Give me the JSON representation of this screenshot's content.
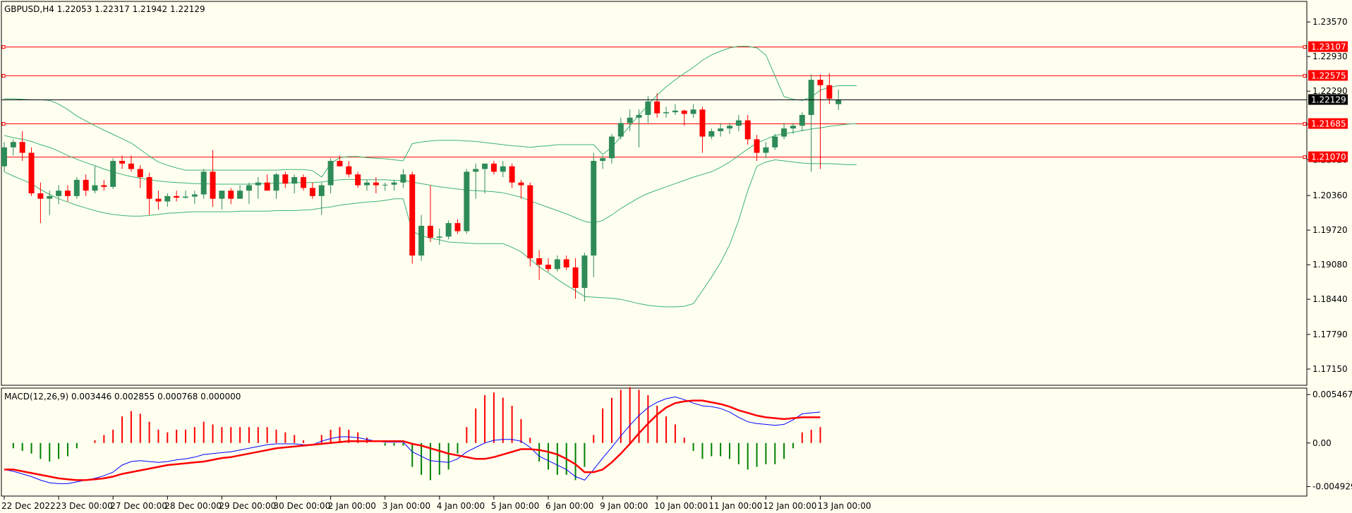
{
  "header": {
    "symbol_line": "GBPUSD,H4  1.22053 1.22317 1.21942 1.22129",
    "macd_line": "MACD(12,26,9) 0.003446 0.002855 0.000768 0.000000"
  },
  "colors": {
    "background": "#fffff0",
    "bull": "#2e8b57",
    "bear": "#ff0000",
    "bollinger": "#3cb371",
    "hline": "#ff0000",
    "price_line": "#000000",
    "macd_main": "#0000ff",
    "macd_signal": "#ff0000",
    "osma_pos": "#ff0000",
    "osma_neg": "#008000"
  },
  "price_axis": {
    "ticks": [
      "1.23570",
      "1.22930",
      "1.22290",
      "1.21680",
      "1.21020",
      "1.20360",
      "1.19720",
      "1.19080",
      "1.18440",
      "1.17790",
      "1.17150"
    ],
    "tick_values": [
      1.2357,
      1.2293,
      1.2229,
      1.2168,
      1.2102,
      1.2036,
      1.1972,
      1.1908,
      1.1844,
      1.1779,
      1.1715
    ]
  },
  "macd_axis": {
    "ticks": [
      "0.005467",
      "0.00",
      "-0.004929"
    ],
    "tick_values": [
      0.005467,
      0,
      -0.004929
    ]
  },
  "time_axis": {
    "labels": [
      "22 Dec 2022",
      "23 Dec 00:00",
      "27 Dec 00:00",
      "28 Dec 00:00",
      "29 Dec 00:00",
      "30 Dec 00:00",
      "2 Jan 00:00",
      "3 Jan 00:00",
      "4 Jan 00:00",
      "5 Jan 00:00",
      "6 Jan 00:00",
      "9 Jan 00:00",
      "10 Jan 00:00",
      "11 Jan 00:00",
      "12 Jan 00:00",
      "13 Jan 00:00"
    ],
    "label_bars": [
      0,
      6,
      12,
      18,
      24,
      30,
      36,
      42,
      48,
      54,
      60,
      66,
      72,
      78,
      84,
      90
    ]
  },
  "horizontal_levels": [
    {
      "label": "1.23107",
      "value": 1.23107
    },
    {
      "label": "1.22575",
      "value": 1.22575
    },
    {
      "label": "1.21685",
      "value": 1.21685
    },
    {
      "label": "1.21070",
      "value": 1.2107
    }
  ],
  "current_price": {
    "label": "1.22129",
    "value": 1.22129
  },
  "chart_data": {
    "type": "candlestick",
    "symbol": "GBPUSD",
    "timeframe": "H4",
    "price_range": [
      1.1685,
      1.2395
    ],
    "macd_range": [
      -0.006,
      0.0062
    ],
    "candles": [
      {
        "o": 1.209,
        "h": 1.2135,
        "l": 1.208,
        "c": 1.2125
      },
      {
        "o": 1.2125,
        "h": 1.214,
        "l": 1.211,
        "c": 1.2135
      },
      {
        "o": 1.2135,
        "h": 1.2155,
        "l": 1.21,
        "c": 1.2115
      },
      {
        "o": 1.2115,
        "h": 1.2125,
        "l": 1.2035,
        "c": 1.204
      },
      {
        "o": 1.204,
        "h": 1.206,
        "l": 1.1985,
        "c": 1.203
      },
      {
        "o": 1.203,
        "h": 1.2045,
        "l": 1.2,
        "c": 1.2035
      },
      {
        "o": 1.2035,
        "h": 1.2055,
        "l": 1.202,
        "c": 1.2045
      },
      {
        "o": 1.2045,
        "h": 1.2055,
        "l": 1.2025,
        "c": 1.2035
      },
      {
        "o": 1.2035,
        "h": 1.207,
        "l": 1.203,
        "c": 1.2065
      },
      {
        "o": 1.2065,
        "h": 1.2075,
        "l": 1.2035,
        "c": 1.2045
      },
      {
        "o": 1.2045,
        "h": 1.209,
        "l": 1.204,
        "c": 1.2055
      },
      {
        "o": 1.2055,
        "h": 1.2065,
        "l": 1.2045,
        "c": 1.2052
      },
      {
        "o": 1.2052,
        "h": 1.2105,
        "l": 1.2048,
        "c": 1.21
      },
      {
        "o": 1.21,
        "h": 1.211,
        "l": 1.2085,
        "c": 1.2095
      },
      {
        "o": 1.2095,
        "h": 1.211,
        "l": 1.208,
        "c": 1.2085
      },
      {
        "o": 1.2085,
        "h": 1.2092,
        "l": 1.205,
        "c": 1.207
      },
      {
        "o": 1.207,
        "h": 1.2078,
        "l": 1.2,
        "c": 1.203
      },
      {
        "o": 1.203,
        "h": 1.2045,
        "l": 1.201,
        "c": 1.2025
      },
      {
        "o": 1.2025,
        "h": 1.204,
        "l": 1.2015,
        "c": 1.2035
      },
      {
        "o": 1.2035,
        "h": 1.2045,
        "l": 1.2025,
        "c": 1.2032
      },
      {
        "o": 1.2032,
        "h": 1.2045,
        "l": 1.203,
        "c": 1.2034
      },
      {
        "o": 1.2034,
        "h": 1.2045,
        "l": 1.202,
        "c": 1.2038
      },
      {
        "o": 1.2038,
        "h": 1.2085,
        "l": 1.203,
        "c": 1.208
      },
      {
        "o": 1.208,
        "h": 1.212,
        "l": 1.2015,
        "c": 1.203
      },
      {
        "o": 1.203,
        "h": 1.2045,
        "l": 1.201,
        "c": 1.2045
      },
      {
        "o": 1.2045,
        "h": 1.205,
        "l": 1.202,
        "c": 1.203
      },
      {
        "o": 1.203,
        "h": 1.2055,
        "l": 1.203,
        "c": 1.2045
      },
      {
        "o": 1.2045,
        "h": 1.206,
        "l": 1.202,
        "c": 1.2055
      },
      {
        "o": 1.2055,
        "h": 1.207,
        "l": 1.203,
        "c": 1.206
      },
      {
        "o": 1.206,
        "h": 1.2075,
        "l": 1.2045,
        "c": 1.2045
      },
      {
        "o": 1.2045,
        "h": 1.2078,
        "l": 1.203,
        "c": 1.2075
      },
      {
        "o": 1.2075,
        "h": 1.208,
        "l": 1.205,
        "c": 1.2058
      },
      {
        "o": 1.2058,
        "h": 1.2075,
        "l": 1.204,
        "c": 1.207
      },
      {
        "o": 1.207,
        "h": 1.2075,
        "l": 1.2045,
        "c": 1.205
      },
      {
        "o": 1.205,
        "h": 1.206,
        "l": 1.203,
        "c": 1.2035
      },
      {
        "o": 1.2035,
        "h": 1.206,
        "l": 1.2,
        "c": 1.2055
      },
      {
        "o": 1.2055,
        "h": 1.2105,
        "l": 1.204,
        "c": 1.21
      },
      {
        "o": 1.21,
        "h": 1.211,
        "l": 1.209,
        "c": 1.209
      },
      {
        "o": 1.209,
        "h": 1.21,
        "l": 1.207,
        "c": 1.2075
      },
      {
        "o": 1.2075,
        "h": 1.208,
        "l": 1.205,
        "c": 1.2055
      },
      {
        "o": 1.2055,
        "h": 1.2065,
        "l": 1.2045,
        "c": 1.206
      },
      {
        "o": 1.206,
        "h": 1.207,
        "l": 1.204,
        "c": 1.2055
      },
      {
        "o": 1.2055,
        "h": 1.206,
        "l": 1.2045,
        "c": 1.2056
      },
      {
        "o": 1.2056,
        "h": 1.2065,
        "l": 1.2045,
        "c": 1.206
      },
      {
        "o": 1.206,
        "h": 1.2085,
        "l": 1.205,
        "c": 1.2075
      },
      {
        "o": 1.2075,
        "h": 1.208,
        "l": 1.191,
        "c": 1.1925
      },
      {
        "o": 1.1925,
        "h": 1.2,
        "l": 1.1915,
        "c": 1.198
      },
      {
        "o": 1.198,
        "h": 1.2055,
        "l": 1.195,
        "c": 1.1958
      },
      {
        "o": 1.1958,
        "h": 1.1975,
        "l": 1.1945,
        "c": 1.196
      },
      {
        "o": 1.196,
        "h": 1.199,
        "l": 1.1955,
        "c": 1.1985
      },
      {
        "o": 1.1985,
        "h": 1.1992,
        "l": 1.1965,
        "c": 1.197
      },
      {
        "o": 1.197,
        "h": 1.2085,
        "l": 1.1965,
        "c": 1.208
      },
      {
        "o": 1.208,
        "h": 1.2095,
        "l": 1.203,
        "c": 1.2085
      },
      {
        "o": 1.2085,
        "h": 1.2095,
        "l": 1.204,
        "c": 1.2095
      },
      {
        "o": 1.2095,
        "h": 1.21,
        "l": 1.2075,
        "c": 1.208
      },
      {
        "o": 1.208,
        "h": 1.21,
        "l": 1.207,
        "c": 1.209
      },
      {
        "o": 1.209,
        "h": 1.2095,
        "l": 1.205,
        "c": 1.206
      },
      {
        "o": 1.206,
        "h": 1.2065,
        "l": 1.203,
        "c": 1.2055
      },
      {
        "o": 1.2055,
        "h": 1.206,
        "l": 1.1905,
        "c": 1.192
      },
      {
        "o": 1.192,
        "h": 1.1935,
        "l": 1.188,
        "c": 1.1908
      },
      {
        "o": 1.1908,
        "h": 1.192,
        "l": 1.1895,
        "c": 1.19
      },
      {
        "o": 1.19,
        "h": 1.1925,
        "l": 1.1895,
        "c": 1.1918
      },
      {
        "o": 1.1918,
        "h": 1.1925,
        "l": 1.1898,
        "c": 1.1903
      },
      {
        "o": 1.1903,
        "h": 1.192,
        "l": 1.1845,
        "c": 1.1865
      },
      {
        "o": 1.1865,
        "h": 1.193,
        "l": 1.184,
        "c": 1.1925
      },
      {
        "o": 1.1925,
        "h": 1.2115,
        "l": 1.1885,
        "c": 1.21
      },
      {
        "o": 1.21,
        "h": 1.211,
        "l": 1.2085,
        "c": 1.2105
      },
      {
        "o": 1.2105,
        "h": 1.215,
        "l": 1.2095,
        "c": 1.2145
      },
      {
        "o": 1.2145,
        "h": 1.218,
        "l": 1.214,
        "c": 1.217
      },
      {
        "o": 1.217,
        "h": 1.2195,
        "l": 1.2155,
        "c": 1.218
      },
      {
        "o": 1.218,
        "h": 1.2195,
        "l": 1.2125,
        "c": 1.2185
      },
      {
        "o": 1.2185,
        "h": 1.222,
        "l": 1.217,
        "c": 1.221
      },
      {
        "o": 1.221,
        "h": 1.2225,
        "l": 1.218,
        "c": 1.2188
      },
      {
        "o": 1.2188,
        "h": 1.22,
        "l": 1.218,
        "c": 1.219
      },
      {
        "o": 1.219,
        "h": 1.2205,
        "l": 1.2185,
        "c": 1.2193
      },
      {
        "o": 1.2193,
        "h": 1.2195,
        "l": 1.2165,
        "c": 1.2187
      },
      {
        "o": 1.2187,
        "h": 1.2205,
        "l": 1.218,
        "c": 1.2195
      },
      {
        "o": 1.2195,
        "h": 1.22,
        "l": 1.2115,
        "c": 1.2145
      },
      {
        "o": 1.2145,
        "h": 1.216,
        "l": 1.214,
        "c": 1.2155
      },
      {
        "o": 1.2155,
        "h": 1.217,
        "l": 1.2145,
        "c": 1.216
      },
      {
        "o": 1.216,
        "h": 1.217,
        "l": 1.215,
        "c": 1.2165
      },
      {
        "o": 1.2165,
        "h": 1.2185,
        "l": 1.2155,
        "c": 1.2175
      },
      {
        "o": 1.2175,
        "h": 1.2185,
        "l": 1.213,
        "c": 1.214
      },
      {
        "o": 1.214,
        "h": 1.2148,
        "l": 1.21,
        "c": 1.2115
      },
      {
        "o": 1.2115,
        "h": 1.2135,
        "l": 1.2105,
        "c": 1.2125
      },
      {
        "o": 1.2125,
        "h": 1.215,
        "l": 1.212,
        "c": 1.2145
      },
      {
        "o": 1.2145,
        "h": 1.217,
        "l": 1.214,
        "c": 1.216
      },
      {
        "o": 1.216,
        "h": 1.217,
        "l": 1.215,
        "c": 1.2165
      },
      {
        "o": 1.2165,
        "h": 1.219,
        "l": 1.2155,
        "c": 1.2185
      },
      {
        "o": 1.2185,
        "h": 1.226,
        "l": 1.208,
        "c": 1.225
      },
      {
        "o": 1.225,
        "h": 1.226,
        "l": 1.2085,
        "c": 1.224
      },
      {
        "o": 1.224,
        "h": 1.2262,
        "l": 1.2205,
        "c": 1.2215
      },
      {
        "o": 1.2205,
        "h": 1.2232,
        "l": 1.2194,
        "c": 1.2213
      }
    ],
    "bollinger_upper": [
      1.2215,
      1.2215,
      1.2214,
      1.2213,
      1.2213,
      1.2212,
      1.2205,
      1.2195,
      1.2183,
      1.2174,
      1.2165,
      1.2157,
      1.2149,
      1.2141,
      1.2133,
      1.2121,
      1.2109,
      1.2098,
      1.2092,
      1.2087,
      1.2083,
      1.2083,
      1.2083,
      1.2083,
      1.2083,
      1.2083,
      1.2083,
      1.2083,
      1.2083,
      1.2083,
      1.2083,
      1.2084,
      1.2084,
      1.2084,
      1.2082,
      1.207,
      1.2095,
      1.2106,
      1.2108,
      1.2108,
      1.2106,
      1.2105,
      1.2104,
      1.2102,
      1.21,
      1.2132,
      1.2135,
      1.2137,
      1.2138,
      1.2138,
      1.2138,
      1.2137,
      1.2136,
      1.2134,
      1.2132,
      1.213,
      1.2128,
      1.2127,
      1.2125,
      1.2127,
      1.2128,
      1.213,
      1.213,
      1.213,
      1.213,
      1.213,
      1.2112,
      1.2125,
      1.2145,
      1.2165,
      1.2185,
      1.2203,
      1.2222,
      1.2237,
      1.225,
      1.2262,
      1.2273,
      1.2286,
      1.2296,
      1.2303,
      1.2309,
      1.2312,
      1.2312,
      1.2309,
      1.2296,
      1.2257,
      1.2219,
      1.2214,
      1.2212,
      1.2218,
      1.2231,
      1.2236,
      1.2239,
      1.2239,
      1.2239
    ],
    "bollinger_middle": [
      1.2147,
      1.2143,
      1.214,
      1.2136,
      1.213,
      1.2125,
      1.2118,
      1.211,
      1.2103,
      1.2097,
      1.2091,
      1.2085,
      1.208,
      1.2075,
      1.2071,
      1.2068,
      1.2065,
      1.2063,
      1.2061,
      1.206,
      1.2059,
      1.2058,
      1.2058,
      1.2057,
      1.2057,
      1.2057,
      1.2057,
      1.2057,
      1.2058,
      1.2058,
      1.2059,
      1.2059,
      1.206,
      1.206,
      1.206,
      1.2061,
      1.2063,
      1.2065,
      1.2066,
      1.2065,
      1.2065,
      1.2065,
      1.2065,
      1.2064,
      1.2064,
      1.2061,
      1.2058,
      1.2055,
      1.2052,
      1.205,
      1.2048,
      1.2046,
      1.2045,
      1.2044,
      1.2043,
      1.2041,
      1.2037,
      1.2033,
      1.2026,
      1.202,
      1.2014,
      1.2008,
      1.2002,
      1.1995,
      1.1988,
      1.1985,
      1.199,
      1.2,
      1.2012,
      1.2022,
      1.2032,
      1.204,
      1.2046,
      1.2052,
      1.2058,
      1.2064,
      1.207,
      1.2075,
      1.208,
      1.2088,
      1.2098,
      1.211,
      1.2122,
      1.2133,
      1.214,
      1.2147,
      1.215,
      1.2153,
      1.2156,
      1.2159,
      1.2161,
      1.2164,
      1.2166,
      1.2168,
      1.2169
    ],
    "bollinger_lower": [
      1.208,
      1.2072,
      1.2065,
      1.2058,
      1.2047,
      1.2038,
      1.203,
      1.2024,
      1.2018,
      1.2013,
      1.2008,
      1.2004,
      1.2001,
      1.1999,
      1.1998,
      1.1998,
      1.1999,
      1.2001,
      1.2003,
      1.2004,
      1.2005,
      1.2006,
      1.2006,
      1.2006,
      1.2006,
      1.2006,
      1.2007,
      1.2007,
      1.2007,
      1.2007,
      1.2008,
      1.2008,
      1.2008,
      1.2009,
      1.201,
      1.2013,
      1.2015,
      1.2018,
      1.202,
      1.2022,
      1.2024,
      1.2025,
      1.2027,
      1.203,
      1.203,
      1.197,
      1.1962,
      1.1957,
      1.1954,
      1.195,
      1.1949,
      1.1948,
      1.1947,
      1.1947,
      1.1947,
      1.1947,
      1.194,
      1.1932,
      1.1918,
      1.1904,
      1.1893,
      1.1881,
      1.187,
      1.186,
      1.1849,
      1.1848,
      1.1847,
      1.1846,
      1.1844,
      1.184,
      1.1836,
      1.1833,
      1.1831,
      1.183,
      1.183,
      1.1831,
      1.1836,
      1.186,
      1.1885,
      1.1912,
      1.1945,
      1.199,
      1.2045,
      1.209,
      1.2098,
      1.2102,
      1.21,
      1.2098,
      1.2096,
      1.2095,
      1.2095,
      1.2095,
      1.2094,
      1.2093,
      1.2093
    ],
    "macd_main": [
      -0.003,
      -0.0032,
      -0.0035,
      -0.0038,
      -0.0042,
      -0.0045,
      -0.0046,
      -0.0046,
      -0.0044,
      -0.0042,
      -0.004,
      -0.0037,
      -0.0033,
      -0.0025,
      -0.0021,
      -0.002,
      -0.0021,
      -0.0022,
      -0.0021,
      -0.0019,
      -0.0018,
      -0.0016,
      -0.0013,
      -0.0012,
      -0.0011,
      -0.001,
      -0.0008,
      -0.0006,
      -0.0004,
      -0.0002,
      -0.0001,
      -0.0001,
      -0.0001,
      -0.0002,
      -0.0002,
      0.0002,
      0.0005,
      0.0007,
      0.0007,
      0.0006,
      0.0004,
      0.0002,
      0.0001,
      0.0001,
      0.0001,
      -0.001,
      -0.0015,
      -0.002,
      -0.0021,
      -0.0022,
      -0.0018,
      -0.001,
      -0.0005,
      0.0,
      0.0003,
      0.0004,
      0.0004,
      0.0002,
      -0.0005,
      -0.0015,
      -0.002,
      -0.0025,
      -0.003,
      -0.0038,
      -0.0042,
      -0.003,
      -0.0017,
      -0.0005,
      0.0008,
      0.002,
      0.0031,
      0.004,
      0.0046,
      0.005,
      0.0052,
      0.0049,
      0.0045,
      0.0042,
      0.0041,
      0.0039,
      0.0035,
      0.0029,
      0.0024,
      0.0022,
      0.0021,
      0.002,
      0.0021,
      0.0026,
      0.0033,
      0.0034,
      0.0035
    ],
    "macd_signal": [
      -0.003,
      -0.003,
      -0.0032,
      -0.0034,
      -0.0036,
      -0.0038,
      -0.004,
      -0.0041,
      -0.0042,
      -0.0042,
      -0.0041,
      -0.004,
      -0.0038,
      -0.0035,
      -0.0033,
      -0.0031,
      -0.0029,
      -0.0027,
      -0.0025,
      -0.0024,
      -0.0023,
      -0.0022,
      -0.0021,
      -0.0019,
      -0.0017,
      -0.0016,
      -0.0014,
      -0.0012,
      -0.001,
      -0.0008,
      -0.0006,
      -0.0005,
      -0.0004,
      -0.0003,
      -0.0002,
      -0.0001,
      0.0,
      0.0001,
      0.0002,
      0.0002,
      0.0002,
      0.0002,
      0.0002,
      0.0002,
      0.0002,
      -0.0001,
      -0.0003,
      -0.0006,
      -0.0009,
      -0.0012,
      -0.0014,
      -0.0016,
      -0.0018,
      -0.0018,
      -0.0016,
      -0.0013,
      -0.001,
      -0.0007,
      -0.0007,
      -0.0008,
      -0.001,
      -0.0013,
      -0.0018,
      -0.0024,
      -0.0033,
      -0.0033,
      -0.003,
      -0.0022,
      -0.0012,
      -0.0001,
      0.0011,
      0.0022,
      0.0032,
      0.004,
      0.0045,
      0.0047,
      0.0048,
      0.0048,
      0.0046,
      0.0044,
      0.0041,
      0.0037,
      0.0034,
      0.0031,
      0.0029,
      0.0028,
      0.0027,
      0.0028,
      0.0029,
      0.0029,
      0.0029
    ]
  }
}
